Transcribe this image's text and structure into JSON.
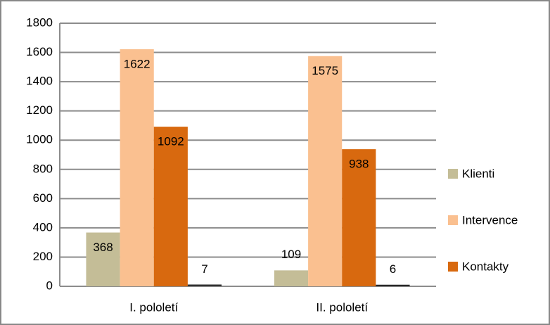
{
  "chart_data": {
    "type": "bar",
    "categories": [
      "I. pololetí",
      "II. pololetí"
    ],
    "series": [
      {
        "name": "Klienti",
        "color": "#c4bd97",
        "values": [
          368,
          109
        ]
      },
      {
        "name": "Intervence",
        "color": "#fac090",
        "values": [
          1622,
          1575
        ]
      },
      {
        "name": "Kontakty",
        "color": "#d8690f",
        "values": [
          1092,
          938
        ]
      },
      {
        "color": "#1f1f1f",
        "values": [
          7,
          6
        ]
      }
    ],
    "ylim": [
      0,
      1800
    ],
    "yticks": [
      0,
      200,
      400,
      600,
      800,
      1000,
      1200,
      1400,
      1600,
      1800
    ],
    "grid": true,
    "legend": "right"
  }
}
